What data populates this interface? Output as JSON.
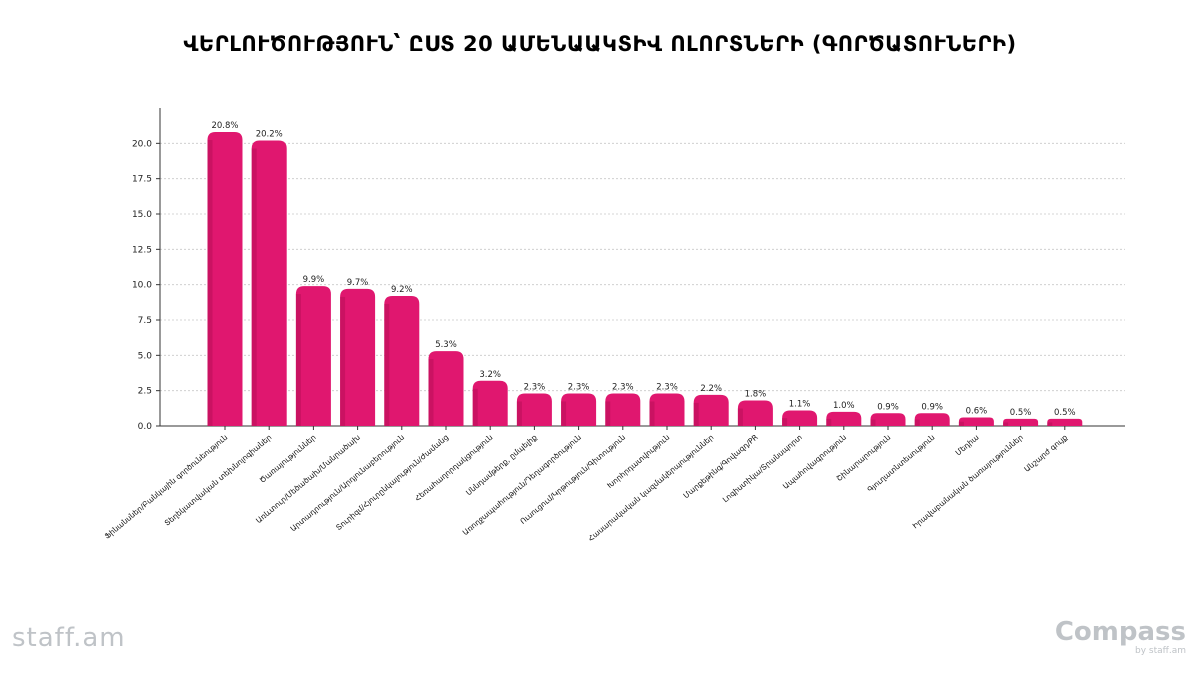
{
  "logos": {
    "left": "staff.am",
    "right_main": "Compass",
    "right_sub": "by staff.am"
  },
  "colors": {
    "bar": "#e0176f",
    "bar_dark": "#b80f58",
    "grid": "#c8c8c8"
  },
  "chart_data": {
    "type": "bar",
    "title": "ՎԵՐԼՈՒԾՈՒԹՅՈՒՆ՝ ԸՍՏ 20 ԱՄԵՆԱԱԿՏԻՎ ՈԼՈՐՏՆԵՐԻ (ԳՈՐԾԱՏՈՒՆԵՐԻ)",
    "xlabel": "",
    "ylabel": "",
    "ylim": [
      0,
      22.5
    ],
    "yticks": [
      0.0,
      2.5,
      5.0,
      7.5,
      10.0,
      12.5,
      15.0,
      17.5,
      20.0
    ],
    "ytick_labels": [
      "0.0",
      "2.5",
      "5.0",
      "7.5",
      "10.0",
      "12.5",
      "15.0",
      "17.5",
      "20.0"
    ],
    "grid": true,
    "categories": [
      "Ֆինանսներ/Բանկային գործունեություն",
      "Տեղեկատվական տեխնոլոգիաներ",
      "Ծառայություններ",
      "Առևտուր/Մեծածախ/Մանրածախ",
      "Արտադրություն/Արդյունաբերություն",
      "Տուրիզմ/Հյուրընկալություն/Ժամանց",
      "Հեռահաղորդակցություն",
      "Սննդամթերք, ըմպելիք",
      "Առողջապահություն/Դեղագործություն",
      "Ուսուցում/Կրթություն/Գիտություն",
      "Խորհրդատվություն",
      "Հասարակական կազմակերպություններ",
      "Մարքեթինգ/Գովազդ/PR",
      "Լոգիստիկա/Տրանսպորտ",
      "Ապահովագրություն",
      "Շինարարություն",
      "Գյուղատնտեսություն",
      "Մեդիա",
      "Իրավաբանական ծառայություններ",
      "Անշարժ գույք"
    ],
    "values": [
      20.8,
      20.2,
      9.9,
      9.7,
      9.2,
      5.3,
      3.2,
      2.3,
      2.3,
      2.3,
      2.3,
      2.2,
      1.8,
      1.1,
      1.0,
      0.9,
      0.9,
      0.6,
      0.5,
      0.5
    ],
    "value_labels": [
      "20.8%",
      "20.2%",
      "9.9%",
      "9.7%",
      "9.2%",
      "5.3%",
      "3.2%",
      "2.3%",
      "2.3%",
      "2.3%",
      "2.3%",
      "2.2%",
      "1.8%",
      "1.1%",
      "1.0%",
      "0.9%",
      "0.9%",
      "0.6%",
      "0.5%",
      "0.5%"
    ]
  }
}
